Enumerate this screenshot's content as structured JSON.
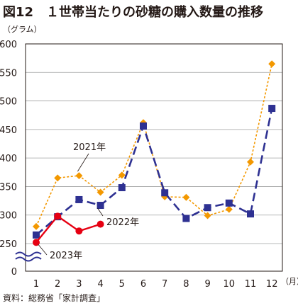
{
  "chart_data": {
    "type": "line",
    "title": "図12　１世帯当たりの砂糖の購入数量の推移",
    "y_unit_label": "（グラム）",
    "x_unit_label": "（月）",
    "source": "資料：総務省「家計調査」",
    "categories": [
      1,
      2,
      3,
      4,
      5,
      6,
      7,
      8,
      9,
      10,
      11,
      12
    ],
    "x_tick_labels": [
      "1",
      "2",
      "3",
      "4",
      "5",
      "6",
      "7",
      "8",
      "9",
      "10",
      "11",
      "12"
    ],
    "y_tick_labels": [
      "600",
      "550",
      "500",
      "450",
      "400",
      "350",
      "300",
      "250",
      "0"
    ],
    "y_ticks": [
      600,
      550,
      500,
      450,
      400,
      350,
      300,
      250
    ],
    "y_zero_label": "0",
    "ylim": [
      250,
      600
    ],
    "axis_break": true,
    "grid": "horizontal",
    "series": [
      {
        "name": "2021年",
        "color": "#f39800",
        "marker": "diamond",
        "line_style": "dotted",
        "values": [
          280,
          365,
          369,
          340,
          370,
          462,
          332,
          331,
          299,
          310,
          393,
          565
        ]
      },
      {
        "name": "2022年",
        "color": "#2e3192",
        "marker": "square",
        "line_style": "dashed",
        "values": [
          265,
          297,
          327,
          317,
          348,
          456,
          339,
          294,
          313,
          321,
          302,
          487
        ]
      },
      {
        "name": "2023年",
        "color": "#e60012",
        "marker": "circle",
        "line_style": "solid",
        "values": [
          252,
          298,
          272,
          284,
          null,
          null,
          null,
          null,
          null,
          null,
          null,
          null
        ]
      }
    ]
  }
}
